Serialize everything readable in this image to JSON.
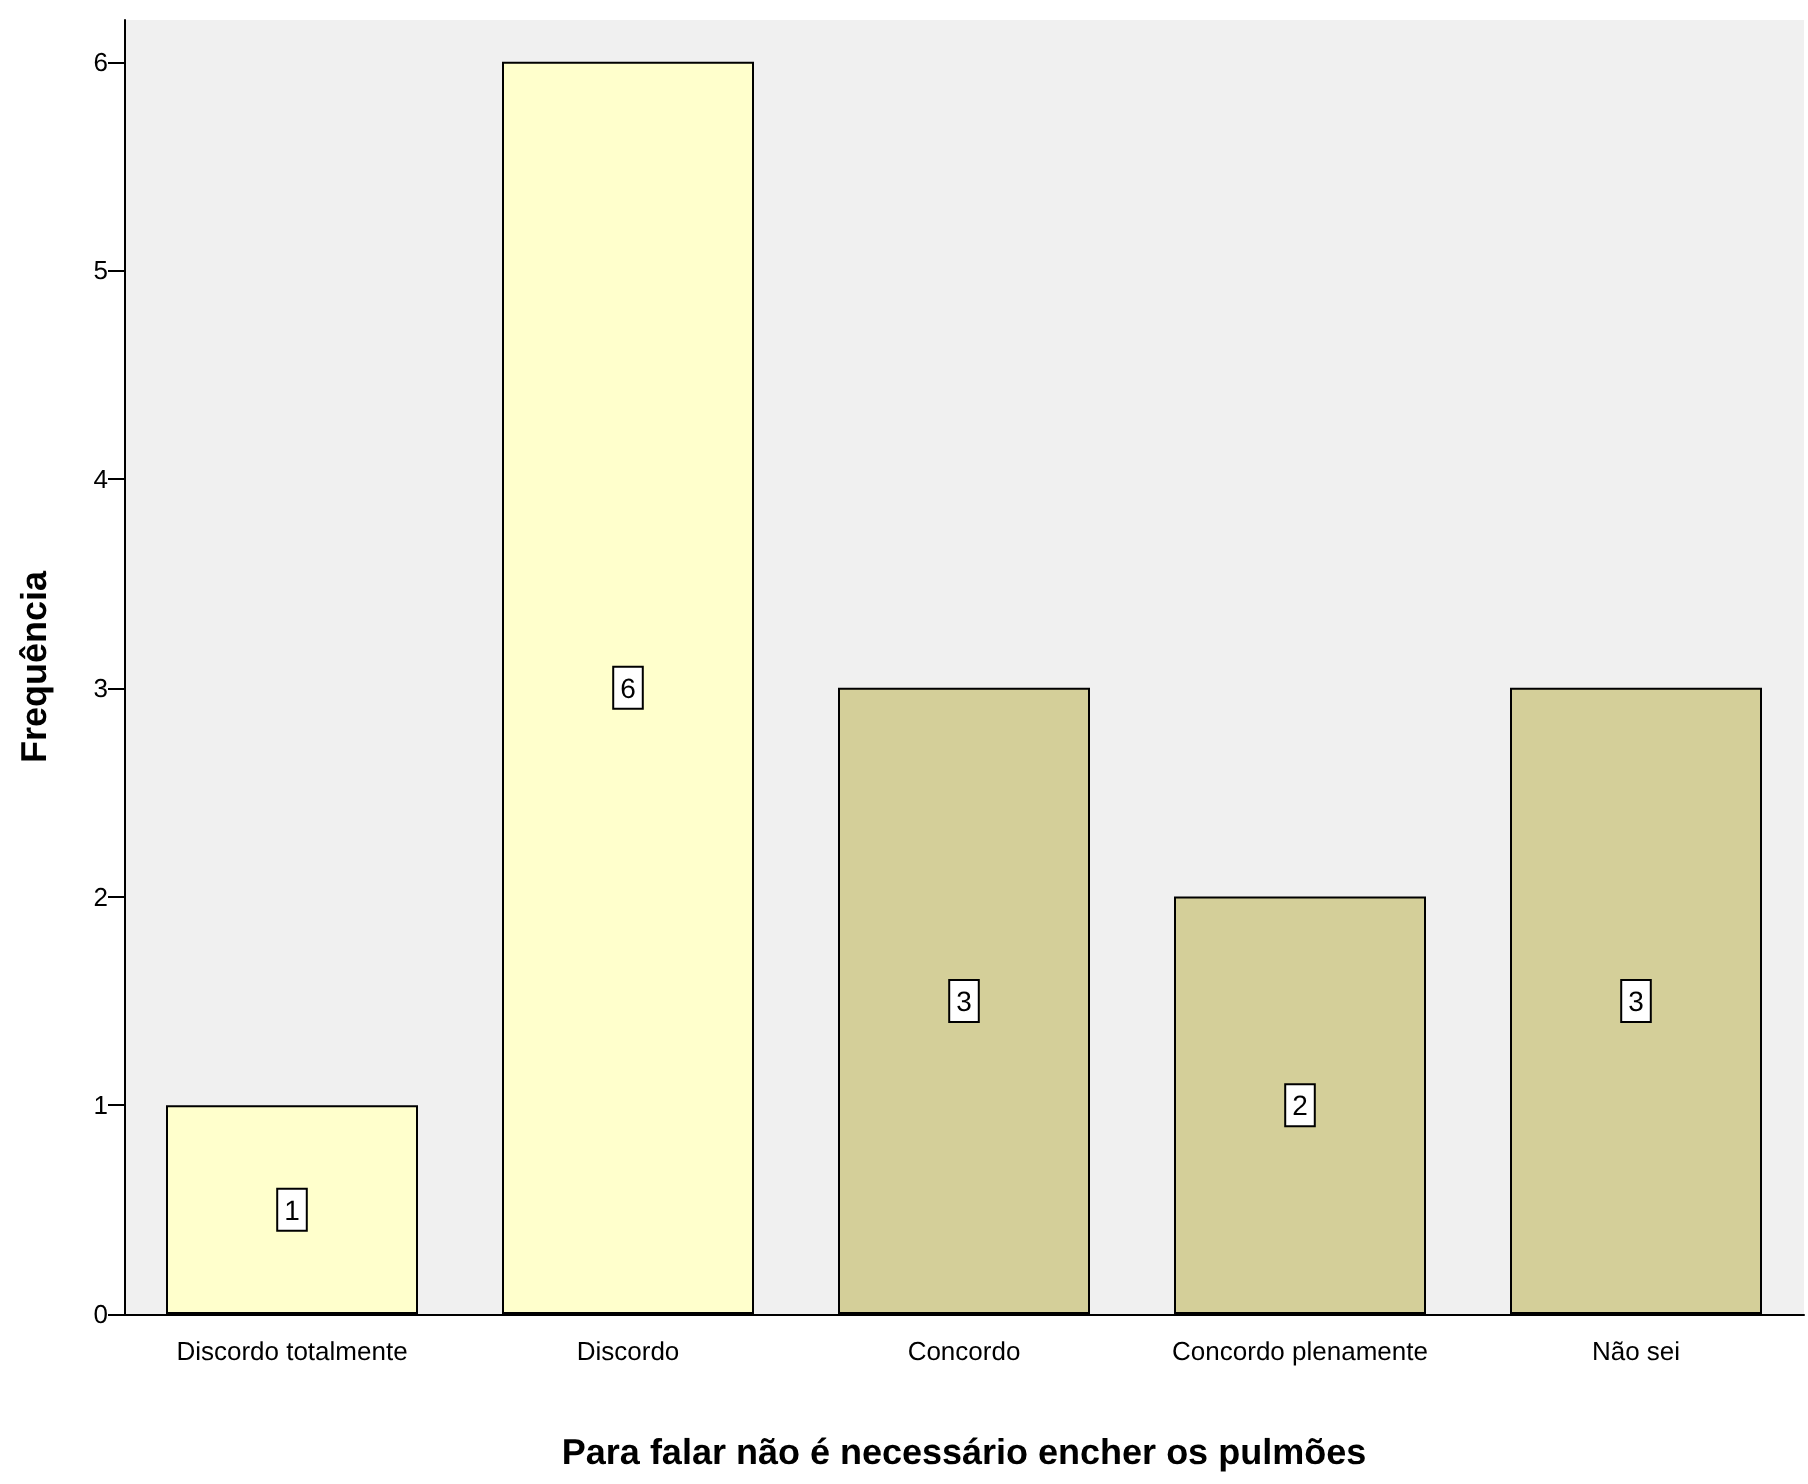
{
  "chart_data": {
    "type": "bar",
    "xlabel": "Para falar não é necessário encher os pulmões",
    "ylabel": "Frequência",
    "categories": [
      "Discordo totalmente",
      "Discordo",
      "Concordo",
      "Concordo plenamente",
      "Não sei"
    ],
    "values": [
      1,
      6,
      3,
      2,
      3
    ],
    "colors": [
      "#ffffcc",
      "#ffffcc",
      "#d4cf99",
      "#d4cf99",
      "#d4cf99"
    ],
    "ylim": [
      0,
      6.2
    ],
    "yticks": [
      0,
      1,
      2,
      3,
      4,
      5,
      6
    ],
    "grid": false,
    "data_labels": true
  }
}
